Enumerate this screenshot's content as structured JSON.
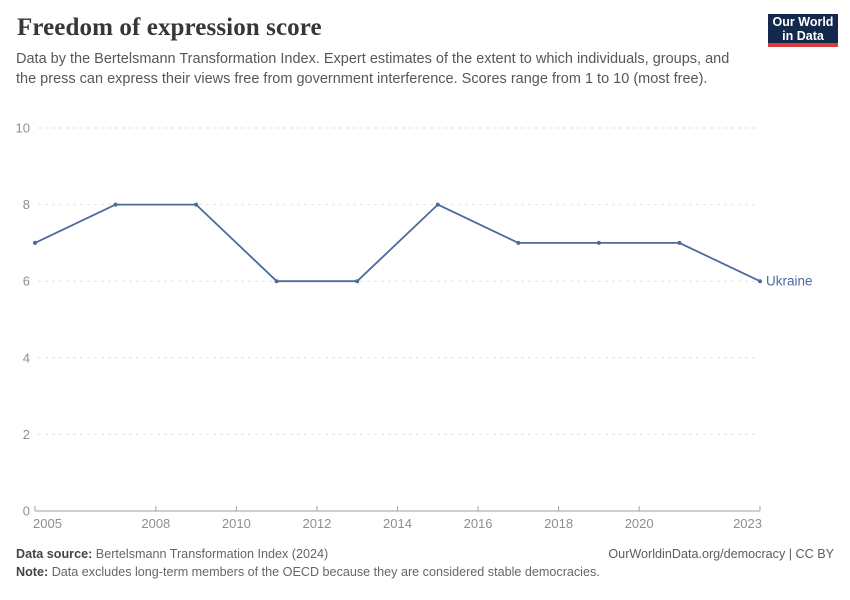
{
  "header": {
    "title": "Freedom of expression score",
    "subtitle": "Data by the Bertelsmann Transformation Index. Expert estimates of the extent to which individuals, groups, and the press can express their views free from government interference. Scores range from 1 to 10 (most free).",
    "logo": {
      "line1": "Our World",
      "line2": "in Data"
    }
  },
  "chart_data": {
    "type": "line",
    "title": "Freedom of expression score",
    "x": [
      2005,
      2007,
      2009,
      2011,
      2013,
      2015,
      2017,
      2019,
      2021,
      2023
    ],
    "series": [
      {
        "name": "Ukraine",
        "values": [
          7,
          8,
          8,
          6,
          6,
          8,
          7,
          7,
          7,
          6
        ],
        "color": "#4c6a9c"
      }
    ],
    "x_ticks": [
      2005,
      2008,
      2010,
      2012,
      2014,
      2016,
      2018,
      2020,
      2023
    ],
    "y_ticks": [
      0,
      2,
      4,
      6,
      8,
      10
    ],
    "xlim": [
      2005,
      2023
    ],
    "ylim": [
      0,
      10
    ],
    "grid": "horizontal-dashed",
    "legend_position": "end-of-line-label",
    "xlabel": "",
    "ylabel": ""
  },
  "footer": {
    "data_source_label": "Data source:",
    "data_source_value": "Bertelsmann Transformation Index (2024)",
    "note_label": "Note:",
    "note_value": "Data excludes long-term members of the OECD because they are considered stable democracies.",
    "link": "OurWorldinData.org/democracy | CC BY"
  },
  "colors": {
    "line": "#4c6a9c",
    "logo_bg": "#12294b",
    "logo_accent": "#d93d3e",
    "grid": "#e2e2e2",
    "axis": "#a2a2a2",
    "tick_label": "#8f8f8f"
  }
}
